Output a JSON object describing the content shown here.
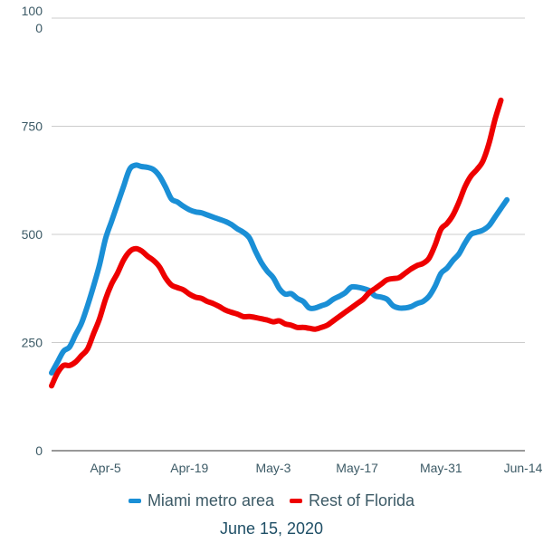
{
  "chart_data": {
    "type": "line",
    "title": "",
    "xlabel": "",
    "ylabel": "",
    "ylim": [
      0,
      1000
    ],
    "yticks": [
      {
        "value": 0,
        "label": "0"
      },
      {
        "value": 250,
        "label": "250"
      },
      {
        "value": 500,
        "label": "500"
      },
      {
        "value": 750,
        "label": "750"
      },
      {
        "value": 1000,
        "label": "1000"
      }
    ],
    "xlim": [
      "2020-03-27",
      "2020-06-14"
    ],
    "xticks": [
      {
        "date": "2020-04-05",
        "label": "Apr-5"
      },
      {
        "date": "2020-04-19",
        "label": "Apr-19"
      },
      {
        "date": "2020-05-03",
        "label": "May-3"
      },
      {
        "date": "2020-05-17",
        "label": "May-17"
      },
      {
        "date": "2020-05-31",
        "label": "May-31"
      },
      {
        "date": "2020-06-14",
        "label": "Jun-14"
      }
    ],
    "grid": true,
    "legend_position": "bottom",
    "series": [
      {
        "name": "Miami metro area",
        "color": "#1a8fd6",
        "points": [
          [
            "2020-03-27",
            180
          ],
          [
            "2020-03-28",
            205
          ],
          [
            "2020-03-29",
            230
          ],
          [
            "2020-03-30",
            240
          ],
          [
            "2020-03-31",
            268
          ],
          [
            "2020-04-01",
            295
          ],
          [
            "2020-04-02",
            335
          ],
          [
            "2020-04-03",
            380
          ],
          [
            "2020-04-04",
            430
          ],
          [
            "2020-04-05",
            490
          ],
          [
            "2020-04-06",
            530
          ],
          [
            "2020-04-07",
            570
          ],
          [
            "2020-04-08",
            610
          ],
          [
            "2020-04-09",
            650
          ],
          [
            "2020-04-10",
            660
          ],
          [
            "2020-04-11",
            657
          ],
          [
            "2020-04-12",
            655
          ],
          [
            "2020-04-13",
            650
          ],
          [
            "2020-04-14",
            635
          ],
          [
            "2020-04-15",
            610
          ],
          [
            "2020-04-16",
            582
          ],
          [
            "2020-04-17",
            575
          ],
          [
            "2020-04-18",
            565
          ],
          [
            "2020-04-19",
            557
          ],
          [
            "2020-04-20",
            552
          ],
          [
            "2020-04-21",
            550
          ],
          [
            "2020-04-22",
            545
          ],
          [
            "2020-04-23",
            540
          ],
          [
            "2020-04-24",
            535
          ],
          [
            "2020-04-25",
            530
          ],
          [
            "2020-04-26",
            523
          ],
          [
            "2020-04-27",
            513
          ],
          [
            "2020-04-28",
            505
          ],
          [
            "2020-04-29",
            492
          ],
          [
            "2020-04-30",
            462
          ],
          [
            "2020-05-01",
            435
          ],
          [
            "2020-05-02",
            415
          ],
          [
            "2020-05-03",
            400
          ],
          [
            "2020-05-04",
            375
          ],
          [
            "2020-05-05",
            362
          ],
          [
            "2020-05-06",
            363
          ],
          [
            "2020-05-07",
            352
          ],
          [
            "2020-05-08",
            345
          ],
          [
            "2020-05-09",
            330
          ],
          [
            "2020-05-10",
            330
          ],
          [
            "2020-05-11",
            335
          ],
          [
            "2020-05-12",
            340
          ],
          [
            "2020-05-13",
            350
          ],
          [
            "2020-05-14",
            357
          ],
          [
            "2020-05-15",
            365
          ],
          [
            "2020-05-16",
            378
          ],
          [
            "2020-05-17",
            378
          ],
          [
            "2020-05-18",
            375
          ],
          [
            "2020-05-19",
            370
          ],
          [
            "2020-05-20",
            358
          ],
          [
            "2020-05-21",
            355
          ],
          [
            "2020-05-22",
            350
          ],
          [
            "2020-05-23",
            335
          ],
          [
            "2020-05-24",
            330
          ],
          [
            "2020-05-25",
            330
          ],
          [
            "2020-05-26",
            333
          ],
          [
            "2020-05-27",
            340
          ],
          [
            "2020-05-28",
            345
          ],
          [
            "2020-05-29",
            357
          ],
          [
            "2020-05-30",
            380
          ],
          [
            "2020-05-31",
            410
          ],
          [
            "2020-06-01",
            422
          ],
          [
            "2020-06-02",
            440
          ],
          [
            "2020-06-03",
            455
          ],
          [
            "2020-06-04",
            480
          ],
          [
            "2020-06-05",
            500
          ],
          [
            "2020-06-06",
            505
          ],
          [
            "2020-06-07",
            510
          ],
          [
            "2020-06-08",
            520
          ],
          [
            "2020-06-09",
            540
          ],
          [
            "2020-06-10",
            560
          ],
          [
            "2020-06-11",
            580
          ]
        ]
      },
      {
        "name": "Rest of Florida",
        "color": "#ee0000",
        "points": [
          [
            "2020-03-27",
            150
          ],
          [
            "2020-03-28",
            180
          ],
          [
            "2020-03-29",
            197
          ],
          [
            "2020-03-30",
            197
          ],
          [
            "2020-03-31",
            205
          ],
          [
            "2020-04-01",
            220
          ],
          [
            "2020-04-02",
            235
          ],
          [
            "2020-04-03",
            270
          ],
          [
            "2020-04-04",
            305
          ],
          [
            "2020-04-05",
            350
          ],
          [
            "2020-04-06",
            385
          ],
          [
            "2020-04-07",
            410
          ],
          [
            "2020-04-08",
            440
          ],
          [
            "2020-04-09",
            460
          ],
          [
            "2020-04-10",
            467
          ],
          [
            "2020-04-11",
            462
          ],
          [
            "2020-04-12",
            450
          ],
          [
            "2020-04-13",
            440
          ],
          [
            "2020-04-14",
            425
          ],
          [
            "2020-04-15",
            400
          ],
          [
            "2020-04-16",
            383
          ],
          [
            "2020-04-17",
            377
          ],
          [
            "2020-04-18",
            372
          ],
          [
            "2020-04-19",
            362
          ],
          [
            "2020-04-20",
            355
          ],
          [
            "2020-04-21",
            352
          ],
          [
            "2020-04-22",
            345
          ],
          [
            "2020-04-23",
            340
          ],
          [
            "2020-04-24",
            333
          ],
          [
            "2020-04-25",
            325
          ],
          [
            "2020-04-26",
            320
          ],
          [
            "2020-04-27",
            316
          ],
          [
            "2020-04-28",
            310
          ],
          [
            "2020-04-29",
            310
          ],
          [
            "2020-04-30",
            308
          ],
          [
            "2020-05-01",
            305
          ],
          [
            "2020-05-02",
            302
          ],
          [
            "2020-05-03",
            298
          ],
          [
            "2020-05-04",
            300
          ],
          [
            "2020-05-05",
            293
          ],
          [
            "2020-05-06",
            290
          ],
          [
            "2020-05-07",
            285
          ],
          [
            "2020-05-08",
            285
          ],
          [
            "2020-05-09",
            283
          ],
          [
            "2020-05-10",
            281
          ],
          [
            "2020-05-11",
            285
          ],
          [
            "2020-05-12",
            290
          ],
          [
            "2020-05-13",
            300
          ],
          [
            "2020-05-14",
            310
          ],
          [
            "2020-05-15",
            320
          ],
          [
            "2020-05-16",
            330
          ],
          [
            "2020-05-17",
            340
          ],
          [
            "2020-05-18",
            350
          ],
          [
            "2020-05-19",
            365
          ],
          [
            "2020-05-20",
            375
          ],
          [
            "2020-05-21",
            385
          ],
          [
            "2020-05-22",
            395
          ],
          [
            "2020-05-23",
            398
          ],
          [
            "2020-05-24",
            400
          ],
          [
            "2020-05-25",
            410
          ],
          [
            "2020-05-26",
            420
          ],
          [
            "2020-05-27",
            428
          ],
          [
            "2020-05-28",
            433
          ],
          [
            "2020-05-29",
            445
          ],
          [
            "2020-05-30",
            475
          ],
          [
            "2020-05-31",
            512
          ],
          [
            "2020-06-01",
            525
          ],
          [
            "2020-06-02",
            545
          ],
          [
            "2020-06-03",
            575
          ],
          [
            "2020-06-04",
            610
          ],
          [
            "2020-06-05",
            635
          ],
          [
            "2020-06-06",
            650
          ],
          [
            "2020-06-07",
            670
          ],
          [
            "2020-06-08",
            710
          ],
          [
            "2020-06-09",
            765
          ],
          [
            "2020-06-10",
            810
          ]
        ]
      }
    ]
  },
  "date_caption": "June 15, 2020"
}
